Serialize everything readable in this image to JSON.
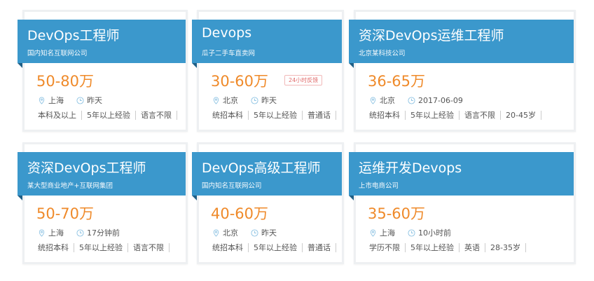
{
  "accent_color": "#3b98cc",
  "salary_color": "#ef8a2a",
  "jobs": [
    {
      "title": "DevOps工程师",
      "company": "国内知名互联网公司",
      "salary": "50-80万",
      "badge": "",
      "location": "上海",
      "time": "昨天",
      "tags": [
        "本科及以上",
        "5年以上经验",
        "语言不限"
      ]
    },
    {
      "title": "Devops",
      "company": "瓜子二手车直卖网",
      "salary": "30-60万",
      "badge": "24小时反馈",
      "location": "北京",
      "time": "昨天",
      "tags": [
        "统招本科",
        "5年以上经验",
        "普通话"
      ]
    },
    {
      "title": "资深DevOps运维工程师",
      "company": "北京某科技公司",
      "salary": "36-65万",
      "badge": "",
      "location": "北京",
      "time": "2017-06-09",
      "tags": [
        "统招本科",
        "5年以上经验",
        "语言不限",
        "20-45岁"
      ]
    },
    {
      "title": "资深DevOps工程师",
      "company": "某大型商业地产+互联网集团",
      "salary": "50-70万",
      "badge": "",
      "location": "上海",
      "time": "17分钟前",
      "tags": [
        "统招本科",
        "5年以上经验",
        "语言不限"
      ]
    },
    {
      "title": "DevOps高级工程师",
      "company": "国内知名互联网公司",
      "salary": "40-60万",
      "badge": "",
      "location": "北京",
      "time": "昨天",
      "tags": [
        "统招本科",
        "5年以上经验",
        "普通话"
      ]
    },
    {
      "title": "运维开发Devops",
      "company": "上市电商公司",
      "salary": "35-60万",
      "badge": "",
      "location": "上海",
      "time": "10小时前",
      "tags": [
        "学历不限",
        "5年以上经验",
        "英语",
        "28-35岁"
      ]
    }
  ]
}
